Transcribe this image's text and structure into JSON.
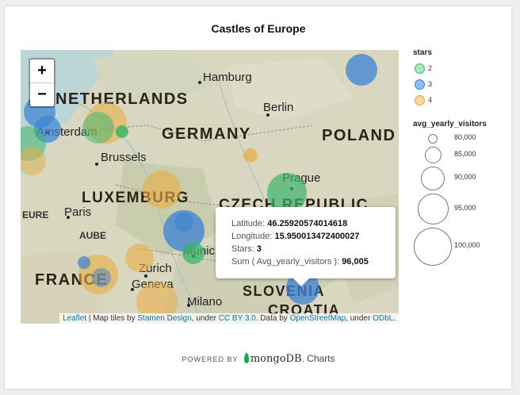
{
  "title": "Castles of Europe",
  "map": {
    "zoom_in_label": "+",
    "zoom_out_label": "−",
    "place_labels": [
      {
        "text": "NETHERLANDS",
        "kind": "country"
      },
      {
        "text": "GERMANY",
        "kind": "country"
      },
      {
        "text": "POLAND",
        "kind": "country"
      },
      {
        "text": "LUXEMBURG",
        "kind": "country"
      },
      {
        "text": "CZECH REPUBLIC",
        "kind": "country"
      },
      {
        "text": "FRANCE",
        "kind": "country"
      },
      {
        "text": "SLOVENIA",
        "kind": "country"
      },
      {
        "text": "CROATIA",
        "kind": "country"
      },
      {
        "text": "Hamburg",
        "kind": "city"
      },
      {
        "text": "Berlin",
        "kind": "city"
      },
      {
        "text": "Amsterdam",
        "kind": "city"
      },
      {
        "text": "Brussels",
        "kind": "city"
      },
      {
        "text": "Prague",
        "kind": "city"
      },
      {
        "text": "Paris",
        "kind": "city"
      },
      {
        "text": "Munich",
        "kind": "city"
      },
      {
        "text": "Zurich",
        "kind": "city"
      },
      {
        "text": "Geneva",
        "kind": "city"
      },
      {
        "text": "Milano",
        "kind": "city"
      },
      {
        "text": "EURE",
        "kind": "region"
      },
      {
        "text": "AUBE",
        "kind": "region"
      }
    ],
    "attribution": {
      "leaflet": "Leaflet",
      "sep1": " | Map tiles by ",
      "stamen": "Stamen Design",
      "sep2": ", under ",
      "ccby": "CC BY 3.0",
      "sep3": ". Data by ",
      "osm": "OpenStreetMap",
      "sep4": ", under ",
      "odbl": "ODbL",
      "end": "."
    }
  },
  "tooltip": {
    "latitude_label": "Latitude:",
    "latitude_value": "46.25920574014618",
    "longitude_label": "Longitude:",
    "longitude_value": "15.950013472400027",
    "stars_label": "Stars:",
    "stars_value": "3",
    "sum_label": "Sum ( Avg_yearly_visitors ):",
    "sum_value": "96,005"
  },
  "legend": {
    "stars_title": "stars",
    "stars": [
      {
        "label": "2",
        "fill": "#a8e6bf",
        "stroke": "#3cb56b"
      },
      {
        "label": "3",
        "fill": "#8fbff0",
        "stroke": "#3b82d4"
      },
      {
        "label": "4",
        "fill": "#f6d8a6",
        "stroke": "#e0a63f"
      }
    ],
    "size_title": "avg_yearly_visitors",
    "sizes": [
      {
        "label": "80,000",
        "value": 80000
      },
      {
        "label": "85,000",
        "value": 85000
      },
      {
        "label": "90,000",
        "value": 90000
      },
      {
        "label": "95,000",
        "value": 95000
      },
      {
        "label": "100,000",
        "value": 100000
      }
    ]
  },
  "colors": {
    "stars_2": "#3cb56b",
    "stars_3": "#3b82d4",
    "stars_4": "#e8ad45"
  },
  "footer": {
    "powered_by": "POWERED BY",
    "brand": "mongoDB",
    "product": "Charts"
  }
}
